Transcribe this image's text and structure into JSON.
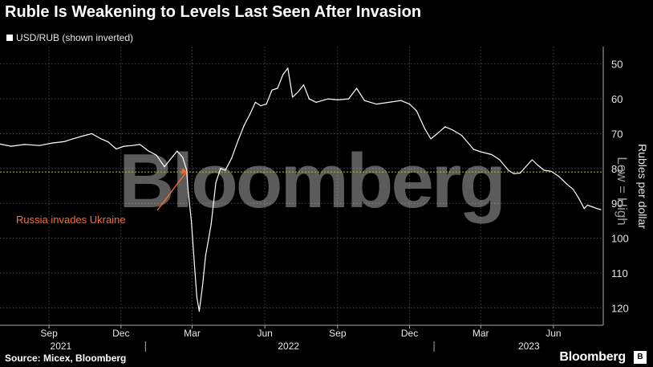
{
  "title": "Ruble Is Weakening to Levels Last Seen After Invasion",
  "legend_label": "USD/RUB (shown inverted)",
  "source": "Source: Micex, Bloomberg",
  "brand": "Bloomberg",
  "watermark": "Bloomberg",
  "colors": {
    "background": "#000000",
    "line": "#ffffff",
    "reference_line": "#9acd32",
    "annotation": "#ff6a2a",
    "grid": "#555555"
  },
  "chart_data": {
    "type": "line",
    "title": "Ruble Is Weakening to Levels Last Seen After Invasion",
    "ylabel": "Rubles per dollar",
    "ylabel_secondary": "Low = High",
    "ylim": [
      45,
      125
    ],
    "y_inverted": true,
    "y_ticks": [
      50,
      60,
      70,
      80,
      90,
      100,
      110,
      120
    ],
    "x_ticks": [
      {
        "date": "2021-09-01",
        "label": "Sep"
      },
      {
        "date": "2021-12-01",
        "label": "Dec"
      },
      {
        "date": "2022-03-01",
        "label": "Mar"
      },
      {
        "date": "2022-06-01",
        "label": "Jun"
      },
      {
        "date": "2022-09-01",
        "label": "Sep"
      },
      {
        "date": "2022-12-01",
        "label": "Dec"
      },
      {
        "date": "2023-03-01",
        "label": "Mar"
      },
      {
        "date": "2023-06-01",
        "label": "Jun"
      }
    ],
    "year_labels": [
      {
        "date": "2021-09-16",
        "label": "2021"
      },
      {
        "date": "2022-07-01",
        "label": "2022"
      },
      {
        "date": "2023-05-01",
        "label": "2023"
      }
    ],
    "xlim": [
      "2021-07-01",
      "2023-08-03"
    ],
    "reference_line": {
      "y": 81
    },
    "annotation": {
      "text": "Russia invades Ukraine",
      "date": "2022-02-24",
      "y": 80
    },
    "series": [
      {
        "name": "USD/RUB (shown inverted)",
        "points": [
          [
            "2021-07-01",
            73.0
          ],
          [
            "2021-07-15",
            73.6
          ],
          [
            "2021-08-01",
            73.1
          ],
          [
            "2021-08-20",
            73.4
          ],
          [
            "2021-09-05",
            72.7
          ],
          [
            "2021-09-20",
            72.3
          ],
          [
            "2021-10-01",
            71.5
          ],
          [
            "2021-10-15",
            70.6
          ],
          [
            "2021-10-25",
            70.0
          ],
          [
            "2021-11-05",
            71.4
          ],
          [
            "2021-11-15",
            72.4
          ],
          [
            "2021-11-25",
            74.4
          ],
          [
            "2021-12-05",
            73.6
          ],
          [
            "2021-12-15",
            73.4
          ],
          [
            "2021-12-25",
            73.1
          ],
          [
            "2022-01-05",
            75.0
          ],
          [
            "2022-01-15",
            76.2
          ],
          [
            "2022-01-25",
            79.5
          ],
          [
            "2022-02-01",
            77.5
          ],
          [
            "2022-02-10",
            75.0
          ],
          [
            "2022-02-17",
            76.8
          ],
          [
            "2022-02-22",
            80.4
          ],
          [
            "2022-02-24",
            86.5
          ],
          [
            "2022-02-28",
            95.0
          ],
          [
            "2022-03-04",
            108.0
          ],
          [
            "2022-03-07",
            117.0
          ],
          [
            "2022-03-10",
            121.0
          ],
          [
            "2022-03-14",
            114.0
          ],
          [
            "2022-03-18",
            105.0
          ],
          [
            "2022-03-22",
            100.0
          ],
          [
            "2022-03-25",
            96.0
          ],
          [
            "2022-03-31",
            84.0
          ],
          [
            "2022-04-06",
            80.0
          ],
          [
            "2022-04-12",
            80.5
          ],
          [
            "2022-04-20",
            77.0
          ],
          [
            "2022-04-28",
            72.0
          ],
          [
            "2022-05-06",
            67.5
          ],
          [
            "2022-05-13",
            64.5
          ],
          [
            "2022-05-20",
            61.0
          ],
          [
            "2022-05-27",
            62.0
          ],
          [
            "2022-06-03",
            61.5
          ],
          [
            "2022-06-10",
            57.5
          ],
          [
            "2022-06-17",
            57.0
          ],
          [
            "2022-06-24",
            53.0
          ],
          [
            "2022-06-30",
            51.2
          ],
          [
            "2022-07-06",
            59.5
          ],
          [
            "2022-07-13",
            58.0
          ],
          [
            "2022-07-20",
            56.0
          ],
          [
            "2022-07-27",
            60.0
          ],
          [
            "2022-08-05",
            61.0
          ],
          [
            "2022-08-20",
            60.0
          ],
          [
            "2022-09-01",
            60.3
          ],
          [
            "2022-09-15",
            60.0
          ],
          [
            "2022-09-25",
            57.0
          ],
          [
            "2022-10-05",
            60.5
          ],
          [
            "2022-10-20",
            61.5
          ],
          [
            "2022-11-05",
            61.0
          ],
          [
            "2022-11-20",
            60.5
          ],
          [
            "2022-12-01",
            61.5
          ],
          [
            "2022-12-10",
            63.5
          ],
          [
            "2022-12-20",
            68.5
          ],
          [
            "2022-12-28",
            71.5
          ],
          [
            "2023-01-05",
            70.0
          ],
          [
            "2023-01-15",
            68.0
          ],
          [
            "2023-01-25",
            69.0
          ],
          [
            "2023-02-05",
            70.5
          ],
          [
            "2023-02-20",
            74.5
          ],
          [
            "2023-03-01",
            75.2
          ],
          [
            "2023-03-15",
            76.0
          ],
          [
            "2023-03-25",
            77.5
          ],
          [
            "2023-04-05",
            80.5
          ],
          [
            "2023-04-12",
            81.5
          ],
          [
            "2023-04-20",
            81.3
          ],
          [
            "2023-04-27",
            79.5
          ],
          [
            "2023-05-05",
            77.5
          ],
          [
            "2023-05-12",
            79.0
          ],
          [
            "2023-05-20",
            80.5
          ],
          [
            "2023-05-29",
            80.8
          ],
          [
            "2023-06-08",
            82.3
          ],
          [
            "2023-06-18",
            84.5
          ],
          [
            "2023-06-26",
            86.0
          ],
          [
            "2023-07-03",
            88.5
          ],
          [
            "2023-07-10",
            91.5
          ],
          [
            "2023-07-14",
            90.5
          ],
          [
            "2023-07-20",
            91.0
          ],
          [
            "2023-07-26",
            91.5
          ],
          [
            "2023-07-31",
            91.8
          ]
        ]
      }
    ]
  }
}
